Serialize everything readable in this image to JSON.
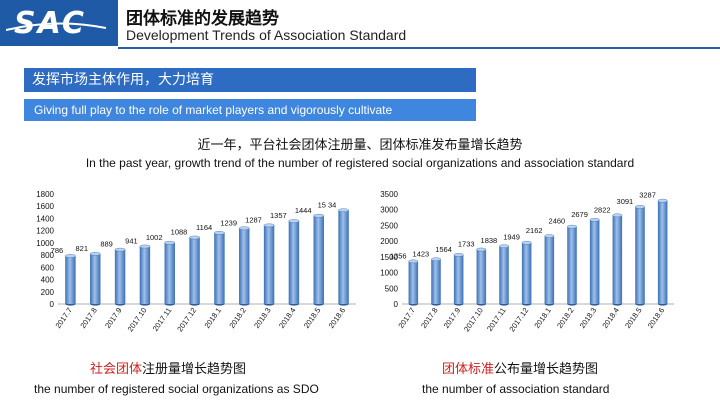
{
  "header": {
    "logo_text": "SAC",
    "title_cn": "团体标准的发展趋势",
    "title_en": "Development Trends of Association Standard"
  },
  "banner": {
    "cn": "发挥市场主体作用，大力培育",
    "en": "Giving full play to the role of market players and vigorously cultivate"
  },
  "subtitle": {
    "cn": "近一年，平台社会团体注册量、团体标准发布量增长趋势",
    "en": "In the past year, growth trend of the number of registered social organizations and association standard"
  },
  "colors": {
    "brand": "#1f5aa6",
    "banner": "#2e6cc4",
    "banner_en": "#3f86df",
    "bar": "#5b87c5",
    "caption_highlight": "#d01f1f"
  },
  "chart_data": [
    {
      "type": "bar",
      "categories": [
        "2017.7",
        "2017.8",
        "2017.9",
        "2017.10",
        "2017.11",
        "2017.12",
        "2018.1",
        "2018.2",
        "2018.3",
        "2018.4",
        "2018.5",
        "2018.6"
      ],
      "values": [
        786,
        821,
        889,
        941,
        1002,
        1088,
        1164,
        1239,
        1287,
        1357,
        1444,
        1534
      ],
      "value_labels": [
        "786",
        "821",
        "889",
        "941",
        "1002",
        "1088",
        "1164",
        "1239",
        "1287",
        "1357",
        "1444",
        "15 34"
      ],
      "ylim": [
        0,
        1800
      ],
      "yticks": [
        0,
        200,
        400,
        600,
        800,
        1000,
        1200,
        1400,
        1600,
        1800
      ],
      "title_cn": {
        "highlight": "社会团体",
        "rest": "注册量增长趋势图"
      },
      "title_en": "the number of registered social organizations as SDO"
    },
    {
      "type": "bar",
      "categories": [
        "2017.7",
        "2017.8",
        "2017.9",
        "2017.10",
        "2017.11",
        "2017.12",
        "2018.1",
        "2018.2",
        "2018.3",
        "2018.4",
        "2018.5",
        "2018.6"
      ],
      "values": [
        1356,
        1423,
        1564,
        1733,
        1838,
        1949,
        2162,
        2460,
        2679,
        2822,
        3091,
        3287
      ],
      "value_labels": [
        "1356",
        "1423",
        "1564",
        "1733",
        "1838",
        "1949",
        "2162",
        "2460",
        "2679",
        "2822",
        "3091",
        "3287"
      ],
      "ylim": [
        0,
        3500
      ],
      "yticks": [
        0,
        500,
        1000,
        1500,
        2000,
        2500,
        3000,
        3500
      ],
      "title_cn": {
        "highlight": "团体标准",
        "rest": "公布量增长趋势图"
      },
      "title_en": "the number of association standard"
    }
  ]
}
